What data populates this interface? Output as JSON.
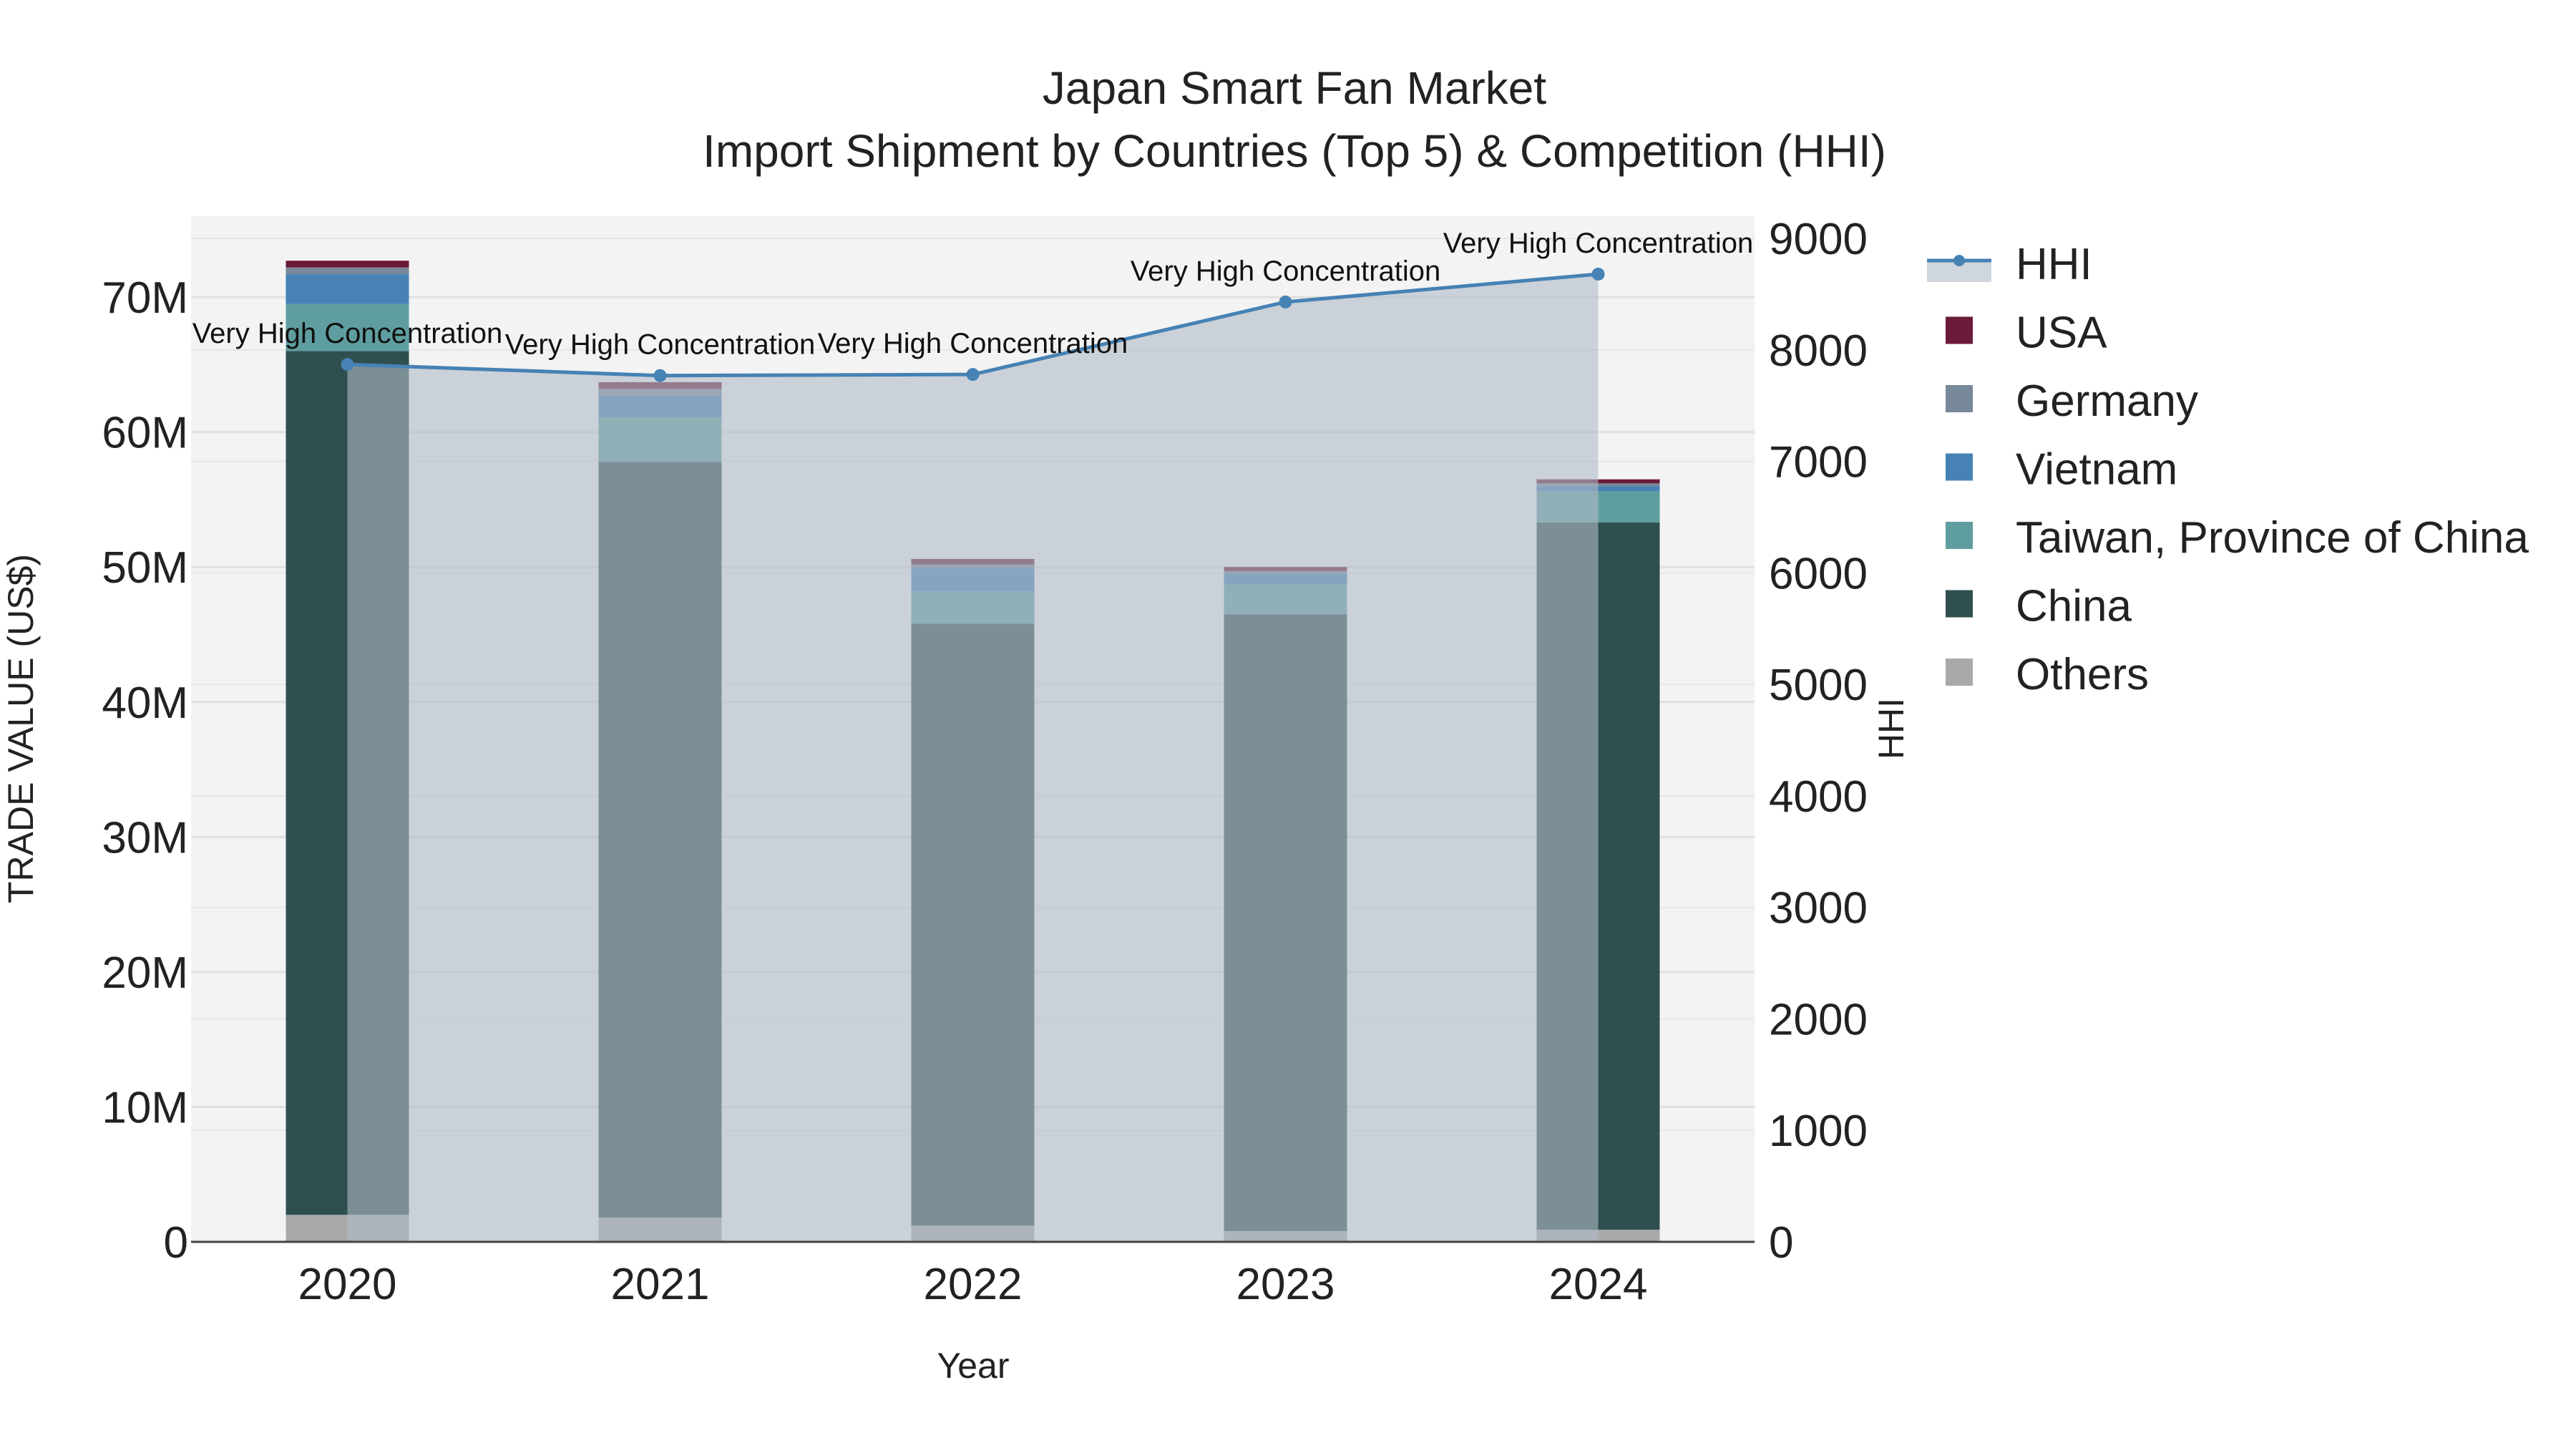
{
  "chart_data": {
    "type": "bar",
    "title": "Japan Smart Fan Market",
    "subtitle": "Import Shipment by Countries (Top 5) & Competition (HHI)",
    "xlabel": "Year",
    "ylabel": "TRADE VALUE (US$)",
    "y2label": "HHI",
    "categories": [
      "2020",
      "2021",
      "2022",
      "2023",
      "2024"
    ],
    "ylim": [
      0,
      76000000
    ],
    "y_ticks": [
      0,
      10000000,
      20000000,
      30000000,
      40000000,
      50000000,
      60000000,
      70000000
    ],
    "y_tick_labels": [
      "0",
      "10M",
      "20M",
      "30M",
      "40M",
      "50M",
      "60M",
      "70M"
    ],
    "y2lim": [
      0,
      9200
    ],
    "y2_ticks": [
      0,
      1000,
      2000,
      3000,
      4000,
      5000,
      6000,
      7000,
      8000,
      9000
    ],
    "y2_tick_labels": [
      "0",
      "1000",
      "2000",
      "3000",
      "4000",
      "5000",
      "6000",
      "7000",
      "8000",
      "9000"
    ],
    "series": [
      {
        "name": "Others",
        "color": "#a9a9a9",
        "values": [
          2000000,
          1800000,
          1200000,
          800000,
          900000
        ]
      },
      {
        "name": "China",
        "color": "#2f4f4f",
        "values": [
          64000000,
          56000000,
          44600000,
          45700000,
          52400000
        ]
      },
      {
        "name": "Taiwan, Province of China",
        "color": "#5f9ea0",
        "values": [
          3500000,
          3300000,
          2400000,
          2200000,
          2300000
        ]
      },
      {
        "name": "Vietnam",
        "color": "#4682b4",
        "values": [
          2200000,
          1600000,
          1700000,
          800000,
          400000
        ]
      },
      {
        "name": "Germany",
        "color": "#778899",
        "values": [
          500000,
          500000,
          300000,
          200000,
          200000
        ]
      },
      {
        "name": "USA",
        "color": "#6b1a3a",
        "values": [
          500000,
          500000,
          400000,
          300000,
          300000
        ]
      }
    ],
    "line": {
      "name": "HHI",
      "color": "#4682b4",
      "values": [
        7870,
        7770,
        7780,
        8430,
        8680
      ],
      "annotations": [
        "Very High Concentration",
        "Very High Concentration",
        "Very High Concentration",
        "Very High Concentration",
        "Very High Concentration"
      ]
    },
    "legend": [
      "HHI",
      "USA",
      "Germany",
      "Vietnam",
      "Taiwan, Province of China",
      "China",
      "Others"
    ],
    "legend_position": "top-right",
    "grid": true
  }
}
